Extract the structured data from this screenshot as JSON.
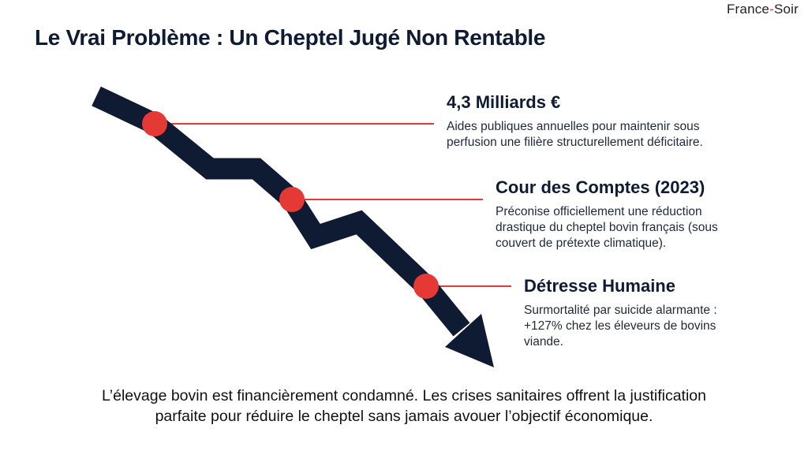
{
  "brand": {
    "part1": "France",
    "dash": "-",
    "part2": "Soir"
  },
  "title": "Le Vrai Problème : Un Cheptel Jugé Non Rentable",
  "callouts": [
    {
      "heading": "4,3 Milliards €",
      "line1": "Aides publiques annuelles pour maintenir sous",
      "line2": "perfusion une filière structurellement déficitaire."
    },
    {
      "heading": "Cour des Comptes (2023)",
      "line1": "Préconise officiellement une réduction",
      "line2": "drastique du cheptel bovin français (sous",
      "line3": "couvert de prétexte climatique)."
    },
    {
      "heading": "Détresse Humaine",
      "line1": "Surmortalité par suicide alarmante :",
      "line2": "+127% chez les éleveurs de bovins",
      "line3": "viande."
    }
  ],
  "conclusion": {
    "line1": "L’élevage bovin est financièrement condamné. Les crises sanitaires offrent la justification",
    "line2": "parfaite pour réduire le cheptel sans jamais avouer l’objectif économique."
  },
  "colors": {
    "arrow": "#0f1b33",
    "marker": "#e53935",
    "connector": "#e53935"
  }
}
